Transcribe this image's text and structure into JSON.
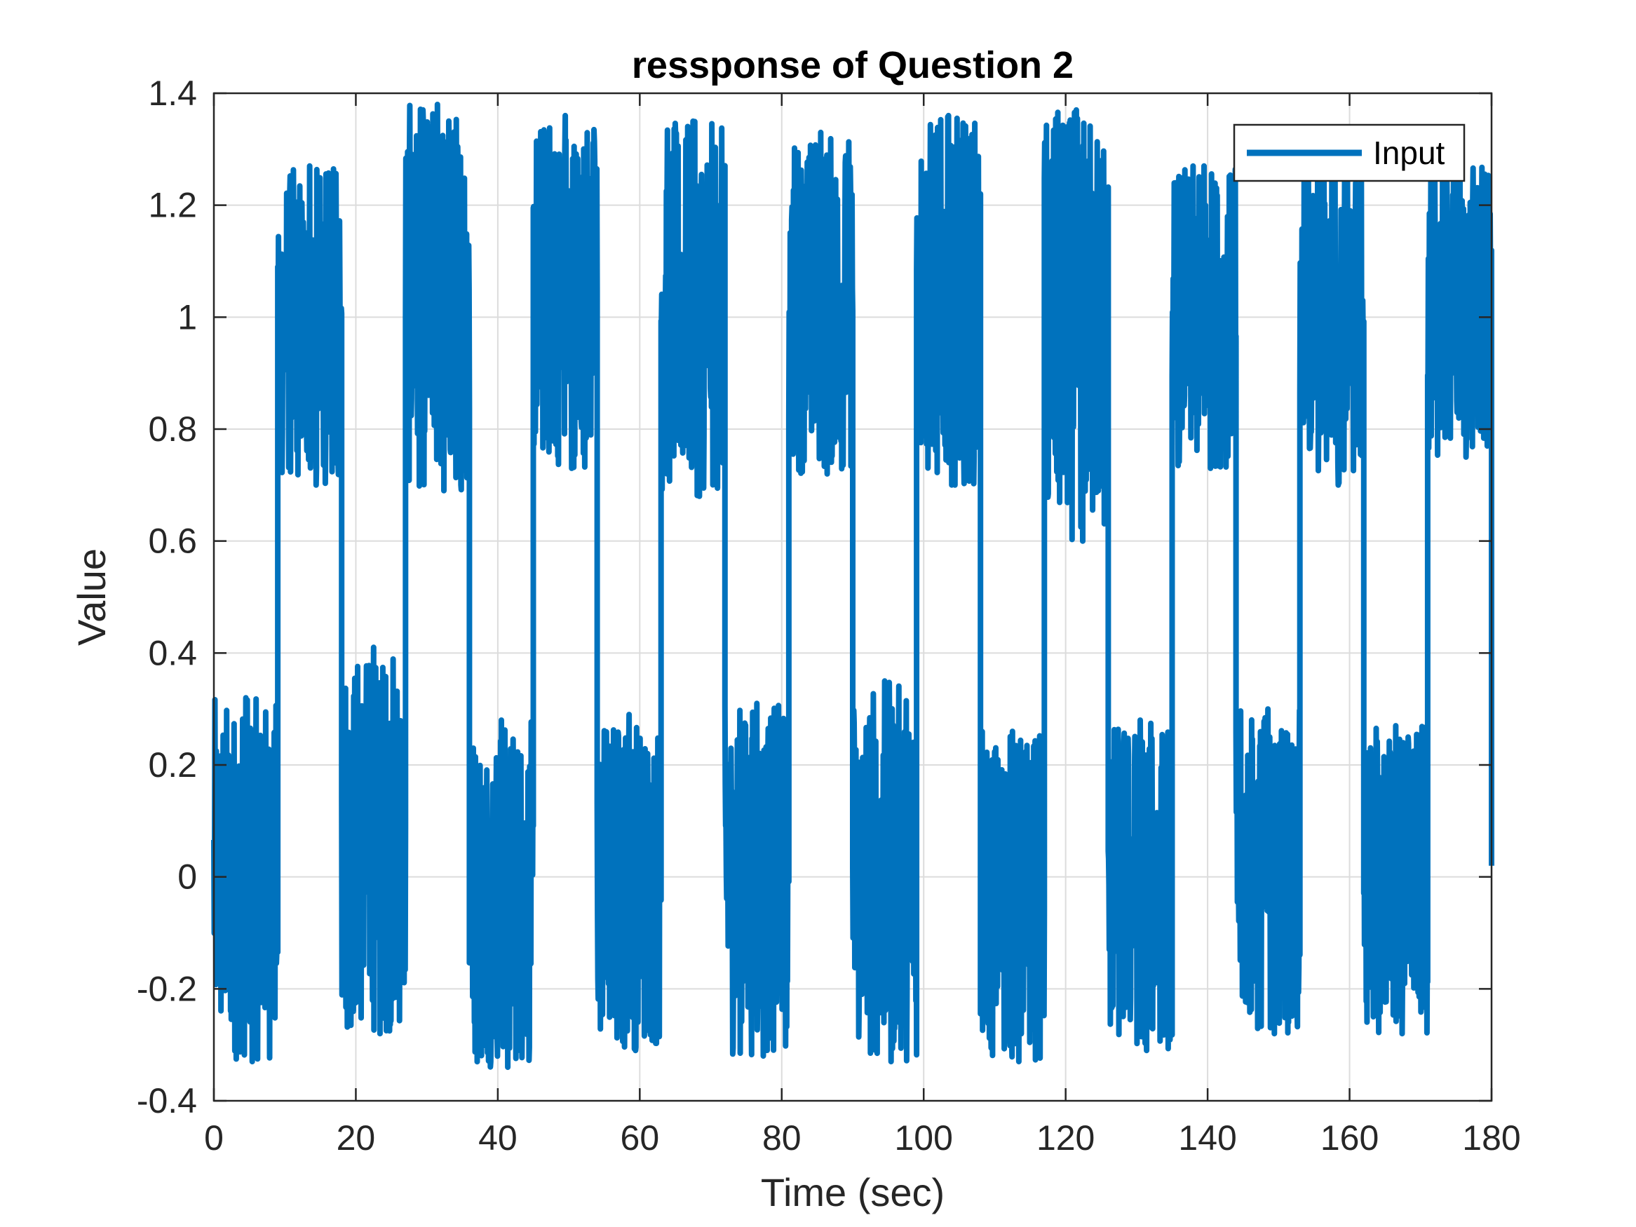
{
  "chart_data": {
    "type": "line",
    "title": "ressponse of Question 2",
    "xlabel": "Time (sec)",
    "ylabel": "Value",
    "xlim": [
      0,
      180
    ],
    "ylim": [
      -0.4,
      1.4
    ],
    "xticks": [
      "0",
      "20",
      "40",
      "60",
      "80",
      "100",
      "120",
      "140",
      "160",
      "180"
    ],
    "yticks": [
      "-0.4",
      "-0.2",
      "0",
      "0.2",
      "0.4",
      "0.6",
      "0.8",
      "1",
      "1.2",
      "1.4"
    ],
    "grid": true,
    "legend": {
      "position": "top-right",
      "entries": [
        "Input"
      ]
    },
    "series": [
      {
        "name": "Input",
        "color": "#0072BD",
        "description": "square wave alternating between 0 and 1 (period 18 s) plus high-frequency noise",
        "segments": [
          {
            "t_start": 0,
            "t_end": 9,
            "level": 0,
            "min": -0.33,
            "max": 0.32
          },
          {
            "t_start": 9,
            "t_end": 18,
            "level": 1,
            "min": 0.7,
            "max": 1.27
          },
          {
            "t_start": 18,
            "t_end": 27,
            "level": 0,
            "min": -0.28,
            "max": 0.41
          },
          {
            "t_start": 27,
            "t_end": 36,
            "level": 1,
            "min": 0.69,
            "max": 1.38
          },
          {
            "t_start": 36,
            "t_end": 45,
            "level": 0,
            "min": -0.34,
            "max": 0.28
          },
          {
            "t_start": 45,
            "t_end": 54,
            "level": 1,
            "min": 0.73,
            "max": 1.36
          },
          {
            "t_start": 54,
            "t_end": 63,
            "level": 0,
            "min": -0.31,
            "max": 0.29
          },
          {
            "t_start": 63,
            "t_end": 72,
            "level": 1,
            "min": 0.68,
            "max": 1.35
          },
          {
            "t_start": 72,
            "t_end": 81,
            "level": 0,
            "min": -0.32,
            "max": 0.31
          },
          {
            "t_start": 81,
            "t_end": 90,
            "level": 1,
            "min": 0.72,
            "max": 1.33
          },
          {
            "t_start": 90,
            "t_end": 99,
            "level": 0,
            "min": -0.33,
            "max": 0.35
          },
          {
            "t_start": 99,
            "t_end": 108,
            "level": 1,
            "min": 0.7,
            "max": 1.36
          },
          {
            "t_start": 108,
            "t_end": 117,
            "level": 0,
            "min": -0.33,
            "max": 0.26
          },
          {
            "t_start": 117,
            "t_end": 126,
            "level": 1,
            "min": 0.6,
            "max": 1.37
          },
          {
            "t_start": 126,
            "t_end": 135,
            "level": 0,
            "min": -0.31,
            "max": 0.28
          },
          {
            "t_start": 135,
            "t_end": 144,
            "level": 1,
            "min": 0.73,
            "max": 1.27
          },
          {
            "t_start": 144,
            "t_end": 153,
            "level": 0,
            "min": -0.28,
            "max": 0.3
          },
          {
            "t_start": 153,
            "t_end": 162,
            "level": 1,
            "min": 0.7,
            "max": 1.28
          },
          {
            "t_start": 162,
            "t_end": 171,
            "level": 0,
            "min": -0.28,
            "max": 0.27
          },
          {
            "t_start": 171,
            "t_end": 180,
            "level": 1,
            "min": 0.75,
            "max": 1.27
          }
        ],
        "end_value": 0.02
      }
    ]
  }
}
